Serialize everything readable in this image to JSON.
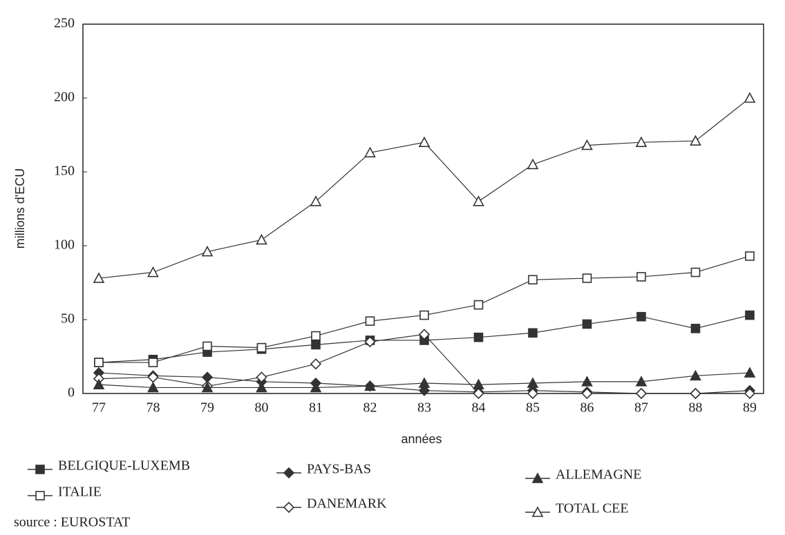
{
  "chart_data": {
    "type": "line",
    "x_label": "années",
    "y_label": "millions d'ECU",
    "categories": [
      "77",
      "78",
      "79",
      "80",
      "81",
      "82",
      "83",
      "84",
      "85",
      "86",
      "87",
      "88",
      "89"
    ],
    "ylim": [
      0,
      250
    ],
    "yticks": [
      0,
      50,
      100,
      150,
      200,
      250
    ],
    "series": [
      {
        "name": "BELGIQUE-LUXEMB",
        "color": "#333333",
        "marker": "square-filled",
        "values": [
          21,
          23,
          28,
          30,
          33,
          36,
          36,
          38,
          41,
          47,
          52,
          44,
          53
        ]
      },
      {
        "name": "ITALIE",
        "color": "#333333",
        "marker": "square-open",
        "values": [
          21,
          21,
          32,
          31,
          39,
          49,
          53,
          60,
          77,
          78,
          79,
          82,
          93
        ]
      },
      {
        "name": "PAYS-BAS",
        "color": "#333333",
        "marker": "diamond-filled",
        "values": [
          14,
          12,
          11,
          8,
          7,
          5,
          2,
          1,
          2,
          1,
          0,
          0,
          2
        ]
      },
      {
        "name": "DANEMARK",
        "color": "#333333",
        "marker": "diamond-open",
        "values": [
          10,
          11,
          5,
          11,
          20,
          35,
          40,
          0,
          0,
          0,
          0,
          0,
          0
        ]
      },
      {
        "name": "ALLEMAGNE",
        "color": "#333333",
        "marker": "triangle-filled",
        "values": [
          6,
          4,
          4,
          4,
          4,
          5,
          7,
          6,
          7,
          8,
          8,
          12,
          14
        ]
      },
      {
        "name": "TOTAL CEE",
        "color": "#333333",
        "marker": "triangle-open",
        "values": [
          78,
          82,
          96,
          104,
          130,
          163,
          170,
          130,
          155,
          168,
          170,
          171,
          200
        ]
      }
    ],
    "source": "source : EUROSTAT"
  }
}
